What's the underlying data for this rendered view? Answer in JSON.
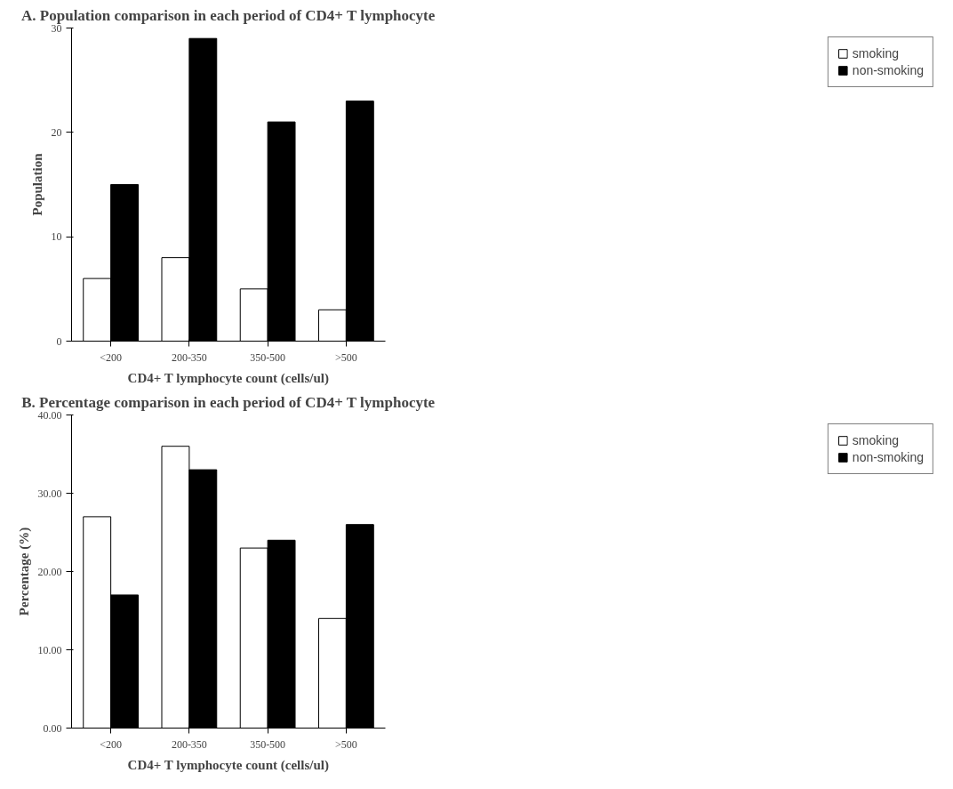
{
  "chart_data": [
    {
      "type": "bar",
      "title": "A. Population comparison in each period of CD4+ T lymphocyte",
      "xlabel": "CD4+ T lymphocyte count (cells/ul)",
      "ylabel": "Population",
      "categories": [
        "<200",
        "200-350",
        "350-500",
        ">500"
      ],
      "series": [
        {
          "name": "smoking",
          "color": "#ffffff",
          "values": [
            6,
            8,
            5,
            3
          ]
        },
        {
          "name": "non-smoking",
          "color": "#000000",
          "values": [
            15,
            29,
            21,
            23
          ]
        }
      ],
      "ylim": [
        0,
        30
      ],
      "yticks": [
        0,
        10,
        20,
        30
      ],
      "grid": false,
      "legend": "right"
    },
    {
      "type": "bar",
      "title": "B. Percentage comparison in each period of CD4+ T lymphocyte",
      "xlabel": "CD4+ T lymphocyte count (cells/ul)",
      "ylabel": "Percentage (%)",
      "categories": [
        "<200",
        "200-350",
        "350-500",
        ">500"
      ],
      "series": [
        {
          "name": "smoking",
          "color": "#ffffff",
          "values": [
            27,
            36,
            23,
            14
          ]
        },
        {
          "name": "non-smoking",
          "color": "#000000",
          "values": [
            17,
            33,
            24,
            26
          ]
        }
      ],
      "ylim": [
        0,
        40
      ],
      "yticks": [
        {
          "value": 0,
          "label": "0.00"
        },
        {
          "value": 10,
          "label": "10.00"
        },
        {
          "value": 20,
          "label": "20.00"
        },
        {
          "value": 30,
          "label": "30.00"
        },
        {
          "value": 40,
          "label": "40.00"
        }
      ],
      "grid": false,
      "legend": "right"
    }
  ]
}
